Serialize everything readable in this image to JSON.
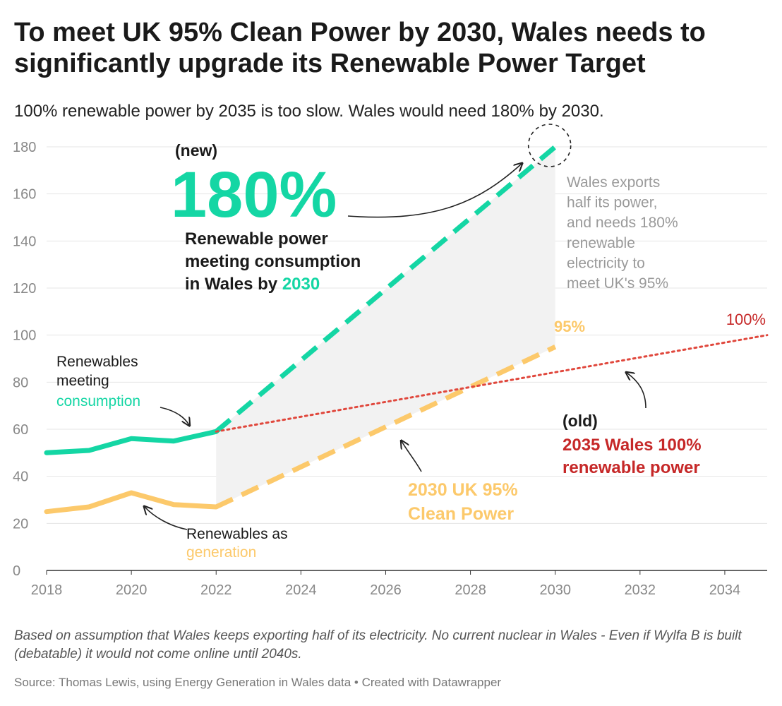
{
  "title": "To meet UK 95% Clean Power by 2030, Wales needs to significantly upgrade its Renewable Power Target",
  "subtitle": "100% renewable power by 2035 is too slow. Wales would need 180% by 2030.",
  "colors": {
    "consumption": "#14d6a4",
    "generation": "#fcc96b",
    "wales_target": "#e0473c",
    "dark_red": "#c62828",
    "shade": "#f2f2f2"
  },
  "chart_data": {
    "type": "line",
    "x_range": [
      2018,
      2035
    ],
    "ylim": [
      0,
      180
    ],
    "x_ticks": [
      "2018",
      "2020",
      "2022",
      "2024",
      "2026",
      "2028",
      "2030",
      "2032",
      "2034"
    ],
    "y_ticks": [
      "0",
      "20",
      "40",
      "60",
      "80",
      "100",
      "120",
      "140",
      "160",
      "180"
    ],
    "series": [
      {
        "name": "Renewables meeting consumption",
        "style": "solid",
        "color": "#14d6a4",
        "x": [
          2018,
          2019,
          2020,
          2021,
          2022
        ],
        "y": [
          50,
          51,
          56,
          55,
          59
        ]
      },
      {
        "name": "Renewables as generation",
        "style": "solid",
        "color": "#fcc96b",
        "x": [
          2018,
          2019,
          2020,
          2021,
          2022
        ],
        "y": [
          25,
          27,
          33,
          28,
          27
        ]
      },
      {
        "name": "Renewable power meeting consumption in Wales by 2030",
        "style": "dashed",
        "color": "#14d6a4",
        "x": [
          2022,
          2030
        ],
        "y": [
          59,
          180
        ]
      },
      {
        "name": "2030 UK 95% Clean Power",
        "style": "dashed",
        "color": "#fcc96b",
        "x": [
          2022,
          2030
        ],
        "y": [
          27,
          95
        ]
      },
      {
        "name": "2035 Wales 100% renewable power",
        "style": "dotted",
        "color": "#e0473c",
        "x": [
          2022,
          2035
        ],
        "y": [
          59,
          100
        ]
      }
    ],
    "shaded_region": {
      "x": [
        2022,
        2030
      ],
      "lower": [
        27,
        95
      ],
      "upper": [
        59,
        180
      ]
    },
    "grid": true,
    "annotations": {
      "new_label": "(new)",
      "big_value": "180%",
      "new_desc_1": "Renewable power",
      "new_desc_2": "meeting consumption",
      "new_desc_3": "in Wales by ",
      "new_desc_year": "2030",
      "exports_lines": [
        "Wales exports",
        "half its power,",
        "and needs 180%",
        "renewable",
        "electricity to",
        "meet UK's 95%"
      ],
      "consumption_lines": [
        "Renewables",
        "meeting"
      ],
      "consumption_word": "consumption",
      "generation_line": "Renewables as",
      "generation_word": "generation",
      "uk_95_value": "95%",
      "uk_label_lines": [
        "2030 UK 95%",
        "Clean Power"
      ],
      "wales_100_value": "100%",
      "old_label": "(old)",
      "wales_label_lines": [
        "2035 Wales 100%",
        "renewable power"
      ]
    }
  },
  "footnote": "Based on assumption that Wales keeps exporting half of its electricity. No current nuclear in Wales - Even if Wylfa B is built (debatable) it would not come online until 2040s.",
  "source": "Source: Thomas Lewis, using Energy Generation in Wales data • Created with Datawrapper"
}
